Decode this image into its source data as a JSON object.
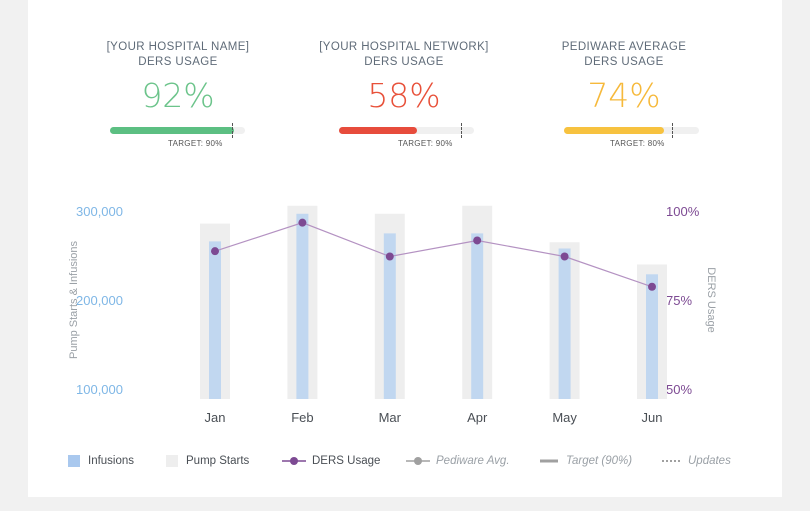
{
  "kpis": [
    {
      "label_line1": "[YOUR HOSPITAL NAME]",
      "label_line2": "DERS USAGE",
      "value_text": "92%",
      "value": 92,
      "target_value": 90,
      "target_text": "TARGET: 90%",
      "color": "#6cc48b",
      "fill_color": "#5cbf82"
    },
    {
      "label_line1": "[YOUR HOSPITAL NETWORK]",
      "label_line2": "DERS USAGE",
      "value_text": "58%",
      "value": 58,
      "target_value": 90,
      "target_text": "TARGET: 90%",
      "color": "#e8513a",
      "fill_color": "#e74c3c"
    },
    {
      "label_line1": "PEDIWARE AVERAGE",
      "label_line2": "DERS USAGE",
      "value_text": "74%",
      "value": 74,
      "target_value": 80,
      "target_text": "TARGET: 80%",
      "color": "#f6b93b",
      "fill_color": "#f7c23f"
    }
  ],
  "chart_data": {
    "type": "bar",
    "categories": [
      "Jan",
      "Feb",
      "Mar",
      "Apr",
      "May",
      "Jun"
    ],
    "series": [
      {
        "name": "Pump Starts",
        "type": "bar",
        "axis": "left",
        "values": [
          287000,
          307000,
          298000,
          307000,
          266000,
          241000
        ],
        "color": "#eeeeee"
      },
      {
        "name": "Infusions",
        "type": "bar",
        "axis": "left",
        "values": [
          267000,
          298000,
          276000,
          276000,
          259000,
          230000
        ],
        "color": "#c1d7f0"
      },
      {
        "name": "DERS Usage",
        "type": "line",
        "axis": "right",
        "values": [
          89,
          97,
          87.5,
          92,
          87.5,
          79
        ],
        "color": "#8a5a9b"
      }
    ],
    "ylabel": "Pump Starts & Infusions",
    "y2label": "DERS Usage",
    "yticks": [
      "300,000",
      "200,000",
      "100,000"
    ],
    "y2ticks": [
      "100%",
      "75%",
      "50%"
    ],
    "ylim": [
      100000,
      300000
    ],
    "y2lim": [
      50,
      100
    ],
    "axis_colors": {
      "left": "#7fb7e6",
      "right": "#7d4a93"
    },
    "legend_position": "bottom"
  },
  "legend": [
    {
      "label": "Infusions",
      "icon": "square",
      "color": "#a9c8ee"
    },
    {
      "label": "Pump Starts",
      "icon": "square",
      "color": "#eeeeee"
    },
    {
      "label": "DERS Usage",
      "icon": "line-dot",
      "color": "#7d4a93"
    },
    {
      "label": "Pediware Avg.",
      "icon": "line-dot",
      "color": "#a0a0a0"
    },
    {
      "label": "Target (90%)",
      "icon": "thick-line",
      "color": "#a0a0a0"
    },
    {
      "label": "Updates",
      "icon": "dotted-line",
      "color": "#a0a0a0"
    }
  ]
}
